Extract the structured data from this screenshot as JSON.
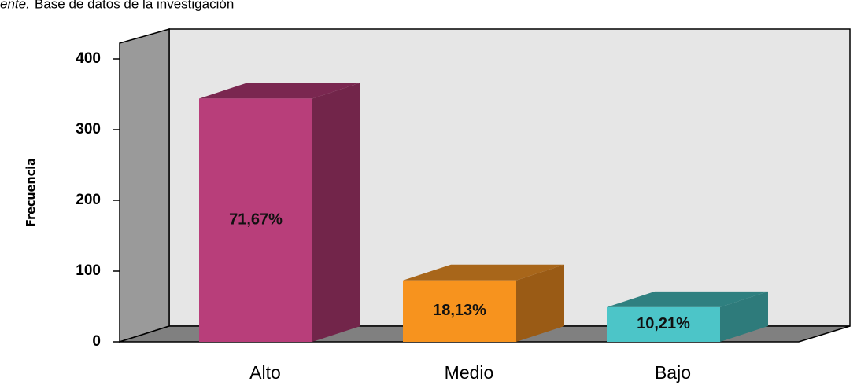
{
  "source_prefix": "ente.",
  "source": "Base de datos de la investigación",
  "chart_data": {
    "type": "bar3d",
    "y_label": "Frecuencia",
    "categories": [
      "Alto",
      "Medio",
      "Bajo"
    ],
    "values": [
      344,
      87,
      49
    ],
    "bar_labels": [
      "71,67%",
      "18,13%",
      "10,21%"
    ],
    "colors": [
      {
        "front": "#b83e7a",
        "side": "#72254a",
        "top": "#7a2750"
      },
      {
        "front": "#f7931e",
        "side": "#9a5b15",
        "top": "#a8661a"
      },
      {
        "front": "#4cc5c8",
        "side": "#2e7b7b",
        "top": "#2f8080"
      }
    ],
    "ylim": [
      0,
      400
    ],
    "yticks": [
      0,
      100,
      200,
      300,
      400
    ]
  }
}
